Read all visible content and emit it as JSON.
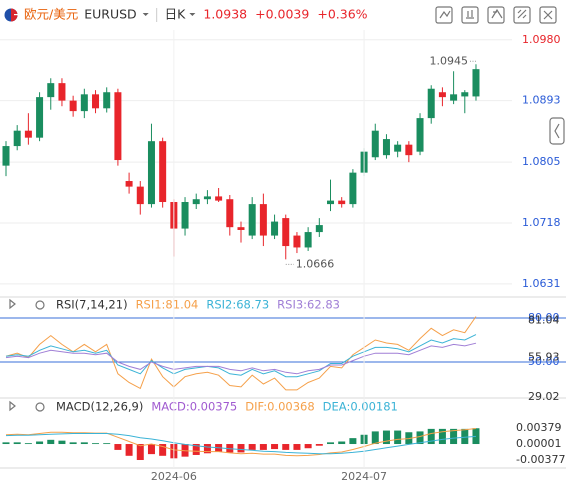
{
  "header": {
    "name": "欧元/美元",
    "symbol": "EURUSD",
    "period": "日K",
    "change": "+0.0039",
    "change_pct": "+0.36%"
  },
  "chart_data": [
    {
      "type": "candlestick",
      "up_color": "#1a8d5f",
      "down_color": "#e8252b",
      "open": [
        1.08,
        1.0828,
        1.085,
        1.084,
        1.0898,
        1.0918,
        1.0893,
        1.0878,
        1.0902,
        1.0882,
        1.0905,
        1.0778,
        1.077,
        1.0745,
        1.0835,
        1.0748,
        1.071,
        1.0745,
        1.0752,
        1.0756,
        1.0752,
        1.0712,
        1.07,
        1.0745,
        1.07,
        1.0725,
        1.07,
        1.0683,
        1.0705,
        1.0745,
        1.075,
        1.0745,
        1.079,
        1.0812,
        1.0815,
        1.082,
        1.083,
        1.082,
        1.0868,
        1.0905,
        1.0893,
        1.0899,
        1.0899
      ],
      "high": [
        1.0835,
        1.0858,
        1.0875,
        1.0905,
        1.0925,
        1.0925,
        1.09,
        1.091,
        1.0908,
        1.0912,
        1.091,
        1.079,
        1.0778,
        1.086,
        1.084,
        1.0752,
        1.0755,
        1.076,
        1.0765,
        1.0768,
        1.0758,
        1.072,
        1.0755,
        1.076,
        1.073,
        1.073,
        1.0705,
        1.0712,
        1.0725,
        1.078,
        1.0755,
        1.0795,
        1.0825,
        1.086,
        1.0845,
        1.0835,
        1.0835,
        1.0875,
        1.0915,
        1.0912,
        1.0935,
        1.0908,
        1.0945
      ],
      "low": [
        1.0785,
        1.0822,
        1.083,
        1.0835,
        1.088,
        1.0885,
        1.087,
        1.0868,
        1.0875,
        1.0876,
        1.08,
        1.076,
        1.073,
        1.074,
        1.074,
        1.067,
        1.07,
        1.0738,
        1.0745,
        1.0748,
        1.07,
        1.069,
        1.0695,
        1.0685,
        1.0695,
        1.0666,
        1.0675,
        1.0678,
        1.0698,
        1.0735,
        1.074,
        1.074,
        1.0785,
        1.0808,
        1.081,
        1.0812,
        1.0805,
        1.0815,
        1.086,
        1.0885,
        1.0888,
        1.0875,
        1.0893
      ],
      "close": [
        1.0828,
        1.085,
        1.084,
        1.0898,
        1.0918,
        1.0893,
        1.0878,
        1.0902,
        1.0882,
        1.0905,
        1.0808,
        1.077,
        1.0745,
        1.0835,
        1.0748,
        1.071,
        1.0748,
        1.0752,
        1.0756,
        1.075,
        1.0712,
        1.0708,
        1.0745,
        1.07,
        1.072,
        1.0685,
        1.0683,
        1.0705,
        1.0715,
        1.075,
        1.0745,
        1.079,
        1.082,
        1.085,
        1.0838,
        1.083,
        1.0815,
        1.0868,
        1.091,
        1.0898,
        1.0902,
        1.0905,
        1.0938
      ],
      "ylim": [
        1.0615,
        1.0994
      ],
      "yticks": [
        {
          "value": 1.098,
          "label": "1.0980"
        },
        1.0893,
        1.0805,
        1.0718,
        1.0631
      ],
      "grid": true
    },
    {
      "type": "line",
      "title": "RSI(7,14,21)",
      "series": [
        {
          "name": "RSI1:81.04",
          "color": "#f5a04a",
          "values": [
            54,
            56,
            53,
            62,
            68,
            62,
            57,
            62,
            57,
            62,
            42,
            36,
            32,
            52,
            40,
            33,
            40,
            42,
            43,
            41,
            34,
            33,
            41,
            35,
            39,
            31,
            31,
            36,
            39,
            47,
            46,
            55,
            60,
            65,
            63,
            62,
            58,
            66,
            73,
            68,
            72,
            70,
            81.04
          ]
        },
        {
          "name": "RSI2:68.73",
          "color": "#3bb3d6",
          "values": [
            54,
            55,
            54,
            58,
            61,
            59,
            57,
            58,
            56,
            58,
            48,
            45,
            42,
            51,
            46,
            42,
            45,
            46,
            47,
            46,
            42,
            41,
            45,
            42,
            44,
            40,
            40,
            42,
            44,
            49,
            49,
            54,
            57,
            60,
            60,
            59,
            57,
            61,
            65,
            63,
            66,
            65,
            68.73
          ]
        },
        {
          "name": "RSI3:62.83",
          "color": "#a07fd6",
          "values": [
            53,
            54,
            53,
            56,
            58,
            57,
            56,
            56,
            55,
            56,
            50,
            47,
            45,
            50,
            47,
            45,
            46,
            47,
            47,
            47,
            45,
            44,
            46,
            44,
            45,
            43,
            42,
            44,
            45,
            48,
            48,
            51,
            54,
            56,
            56,
            56,
            55,
            58,
            61,
            60,
            62,
            61,
            62.83
          ]
        }
      ],
      "ylim": [
        27.5,
        85.5
      ],
      "reference_lines": [
        {
          "value": 80,
          "label": "80.00"
        },
        {
          "value": 50,
          "label": "50.00"
        }
      ],
      "reference_color": "#3a6fd8",
      "yticks": [
        81.04,
        55.93,
        29.02
      ]
    },
    {
      "type": "macd",
      "title": "MACD(12,26,9)",
      "up_color": "#1a8d5f",
      "down_color": "#e8252b",
      "categories": [
        null,
        null,
        null,
        null,
        null,
        null,
        null,
        null,
        null,
        null,
        null,
        null,
        null,
        null,
        null,
        "2024-06",
        null,
        null,
        null,
        null,
        null,
        null,
        null,
        null,
        null,
        null,
        null,
        null,
        null,
        null,
        null,
        null,
        "2024-07",
        null,
        null,
        null,
        null,
        null,
        null,
        null,
        null,
        null,
        null
      ],
      "series": [
        {
          "name": "MACD:0.00375",
          "color": "#a05ad0",
          "values": [
            0.0004,
            0.0004,
            0.0002,
            0.0006,
            0.001,
            0.0008,
            0.0004,
            0.0004,
            0.0002,
            0.0002,
            -0.0014,
            -0.0028,
            -0.0038,
            -0.0024,
            -0.0028,
            -0.0034,
            -0.003,
            -0.0026,
            -0.0022,
            -0.0018,
            -0.002,
            -0.002,
            -0.0014,
            -0.0014,
            -0.0012,
            -0.0014,
            -0.0014,
            -0.001,
            -0.0004,
            0.0004,
            0.0006,
            0.0014,
            0.0022,
            0.003,
            0.0032,
            0.0032,
            0.0028,
            0.003,
            0.0036,
            0.0036,
            0.0036,
            0.0036,
            0.00375
          ]
        },
        {
          "name": "DIF:0.00368",
          "color": "#f5a04a",
          "values": [
            0.0022,
            0.0023,
            0.0022,
            0.0025,
            0.0028,
            0.0028,
            0.0027,
            0.0027,
            0.0026,
            0.0026,
            0.0016,
            0.0006,
            -0.0004,
            0.0,
            -0.0006,
            -0.0014,
            -0.0016,
            -0.0017,
            -0.0018,
            -0.0018,
            -0.0021,
            -0.0023,
            -0.0022,
            -0.0024,
            -0.0024,
            -0.0027,
            -0.0028,
            -0.0027,
            -0.0025,
            -0.0021,
            -0.0019,
            -0.0013,
            -0.0006,
            0.0002,
            0.0007,
            0.0011,
            0.0013,
            0.0018,
            0.0025,
            0.0029,
            0.0032,
            0.0034,
            0.00368
          ]
        },
        {
          "name": "DEA:0.00181",
          "color": "#3bb3d6",
          "values": [
            0.002,
            0.0021,
            0.0021,
            0.0022,
            0.0023,
            0.0024,
            0.0025,
            0.0025,
            0.0025,
            0.0025,
            0.0023,
            0.002,
            0.0015,
            0.0012,
            0.0008,
            0.0003,
            -0.0001,
            -0.0004,
            -0.0007,
            -0.0009,
            -0.0011,
            -0.0013,
            -0.0015,
            -0.0017,
            -0.0018,
            -0.002,
            -0.0021,
            -0.0022,
            -0.0023,
            -0.0023,
            -0.0022,
            -0.002,
            -0.0017,
            -0.0013,
            -0.0009,
            -0.0005,
            -0.0001,
            0.0003,
            0.0007,
            0.0011,
            0.0014,
            0.0016,
            0.00181
          ]
        }
      ],
      "ylim": [
        -0.0057,
        0.0069
      ],
      "yticks": [
        0.00379,
        1e-05,
        -0.00377
      ]
    }
  ]
}
